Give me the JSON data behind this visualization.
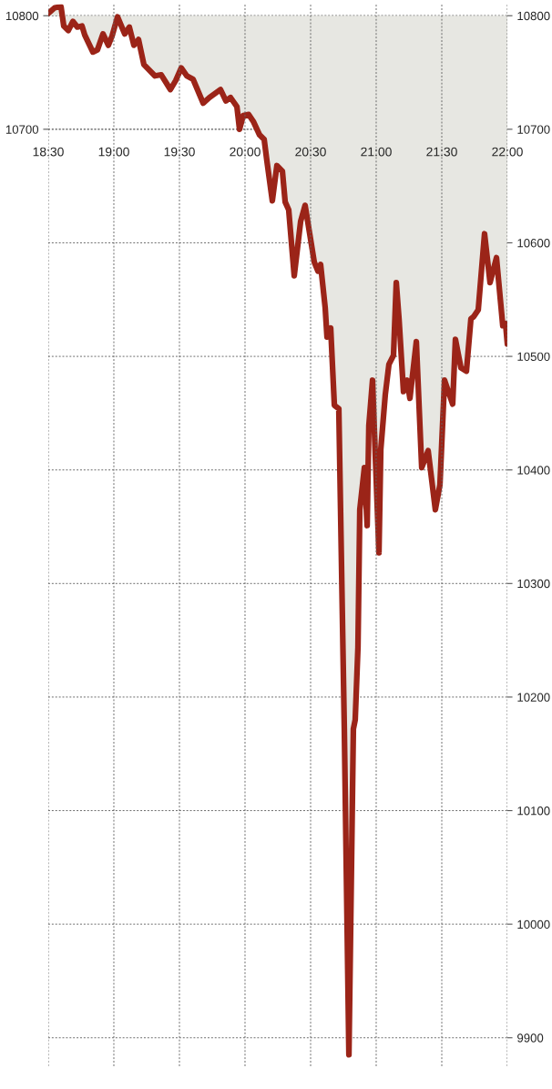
{
  "chart_data": {
    "type": "line",
    "x": [
      18.5,
      18.549,
      18.597,
      18.618,
      18.653,
      18.688,
      18.722,
      18.757,
      18.778,
      18.84,
      18.875,
      18.917,
      18.958,
      18.986,
      19.028,
      19.083,
      19.118,
      19.153,
      19.188,
      19.229,
      19.313,
      19.361,
      19.431,
      19.472,
      19.514,
      19.556,
      19.604,
      19.681,
      19.729,
      19.813,
      19.854,
      19.889,
      19.938,
      19.958,
      19.986,
      20.028,
      20.063,
      20.111,
      20.146,
      20.167,
      20.208,
      20.243,
      20.285,
      20.306,
      20.333,
      20.375,
      20.424,
      20.458,
      20.493,
      20.528,
      20.556,
      20.576,
      20.611,
      20.625,
      20.653,
      20.681,
      20.715,
      20.757,
      20.792,
      20.826,
      20.84,
      20.861,
      20.875,
      20.91,
      20.931,
      20.944,
      20.972,
      21.021,
      21.035,
      21.069,
      21.097,
      21.132,
      21.153,
      21.174,
      21.208,
      21.236,
      21.257,
      21.306,
      21.347,
      21.396,
      21.451,
      21.486,
      21.521,
      21.583,
      21.604,
      21.646,
      21.688,
      21.722,
      21.743,
      21.778,
      21.826,
      21.868,
      21.917,
      21.965,
      21.986,
      22.0
    ],
    "series": [
      {
        "color": "#9b2418",
        "values": [
          10802,
          10807,
          10808,
          10791,
          10787,
          10795,
          10790,
          10791,
          10783,
          10768,
          10770,
          10784,
          10774,
          10782,
          10799,
          10784,
          10790,
          10774,
          10779,
          10757,
          10747,
          10748,
          10735,
          10743,
          10754,
          10747,
          10744,
          10723,
          10728,
          10735,
          10725,
          10728,
          10720,
          10700,
          10712,
          10713,
          10707,
          10695,
          10691,
          10672,
          10637,
          10668,
          10663,
          10636,
          10629,
          10571,
          10619,
          10633,
          10608,
          10583,
          10575,
          10581,
          10543,
          10517,
          10525,
          10457,
          10454,
          10172,
          9885,
          10172,
          10180,
          10244,
          10365,
          10402,
          10351,
          10439,
          10479,
          10327,
          10418,
          10466,
          10493,
          10501,
          10565,
          10533,
          10469,
          10479,
          10463,
          10513,
          10402,
          10417,
          10365,
          10387,
          10479,
          10458,
          10515,
          10490,
          10487,
          10533,
          10535,
          10541,
          10608,
          10565,
          10587,
          10527,
          10529,
          10511
        ]
      }
    ],
    "xlim": [
      18.5,
      22.0
    ],
    "xticks": [
      {
        "value": 18.5,
        "label": "18:30"
      },
      {
        "value": 19.0,
        "label": "19:00"
      },
      {
        "value": 19.5,
        "label": "19:30"
      },
      {
        "value": 20.0,
        "label": "20:00"
      },
      {
        "value": 20.5,
        "label": "20:30"
      },
      {
        "value": 21.0,
        "label": "21:00"
      },
      {
        "value": 21.5,
        "label": "21:30"
      },
      {
        "value": 22.0,
        "label": "22:00"
      }
    ],
    "ylim": [
      9875,
      10810
    ],
    "yticks": [
      10700,
      10800
    ],
    "y2lim": [
      9875,
      10810
    ],
    "y2ticks": [
      9900,
      10000,
      10100,
      10200,
      10300,
      10400,
      10500,
      10600,
      10700,
      10800
    ],
    "grid": true,
    "line_style": "solid"
  }
}
